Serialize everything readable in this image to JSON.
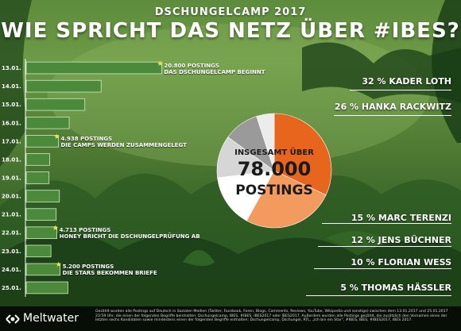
{
  "header": {
    "kicker": "DSCHUNGELCAMP 2017",
    "title": "WIE SPRICHT DAS NETZ ÜBER #IBES?"
  },
  "colors": {
    "bar": "#4a8a3a",
    "bar_edge": "#d6e8c8",
    "star": "#f2e23c",
    "pie_loth": "#e8651e",
    "pie_rackwitz": "#f39a5e",
    "pie_terenzi": "#ffffff",
    "pie_buechner": "#d6d6d6",
    "pie_wess": "#9a9a9a",
    "pie_haessler": "#ececec"
  },
  "chart_data": [
    {
      "type": "bar",
      "orientation": "horizontal",
      "categories": [
        "13.01.",
        "14.01.",
        "15.01.",
        "16.01.",
        "17.01.",
        "18.01.",
        "19.01.",
        "20.01.",
        "21.01.",
        "22.01.",
        "23.01.",
        "24.01.",
        "25.01."
      ],
      "values": [
        20800,
        11500,
        9000,
        6600,
        4938,
        3600,
        3500,
        5100,
        4600,
        4713,
        3800,
        5200,
        6400
      ],
      "xlim": [
        0,
        21000
      ],
      "annotations": [
        {
          "category": "13.01.",
          "line1": "20.800 POSTINGS",
          "line2": "DAS DSCHUNGELCAMP BEGINNT"
        },
        {
          "category": "17.01.",
          "line1": "4.938 POSTINGS",
          "line2": "DIE CAMPS WERDEN ZUSAMMENGELEGT"
        },
        {
          "category": "22.01.",
          "line1": "4.713 POSTINGS",
          "line2": "HONEY BRICHT DIE DSCHUNGELPRÜFUNG AB"
        },
        {
          "category": "24.01.",
          "line1": "5.200 POSTINGS",
          "line2": "DIE STARS BEKOMMEN BRIEFE"
        }
      ]
    },
    {
      "type": "pie",
      "center_text": {
        "line1": "INSGESAMT ÜBER",
        "line2": "78.000",
        "line3": "POSTINGS"
      },
      "slices": [
        {
          "label": "32 % KADER LOTH",
          "value": 32
        },
        {
          "label": "26 % HANKA RACKWITZ",
          "value": 26
        },
        {
          "label": "15 % MARC TERENZI",
          "value": 15
        },
        {
          "label": "12 % JENS BÜCHNER",
          "value": 12
        },
        {
          "label": "10 % FLORIAN WESS",
          "value": 10
        },
        {
          "label": "5 % THOMAS HÄSSLER",
          "value": 5
        }
      ]
    }
  ],
  "footer": {
    "logo_text": "Meltwater",
    "note": "Gezählt wurden alle Postings auf Deutsch in Sozialen Medien (Twitter, Facebook, Foren, Blogs, Comments, Reviews, YouTube, Wikipedia und sonstige) zwischen dem 13.01.2017 und 25.01.2017 23:59 Uhr, die einen der folgenden Begriffe beinhalten: Dschungelcamp, IBES, #IBES, IBES2017 oder IBES2017. Außerdem wurden alle Postings gezählt, die zusätzlich den Vornamen eines der letzten sechs Kandidaten sowie mindestens einen der folgenden Begriffe enthalten: Dschungelcamp, Dschungel, RTL, „Ich bin ein Star\", #IBES, IBES, #IBES2017, IBES 2017."
  }
}
